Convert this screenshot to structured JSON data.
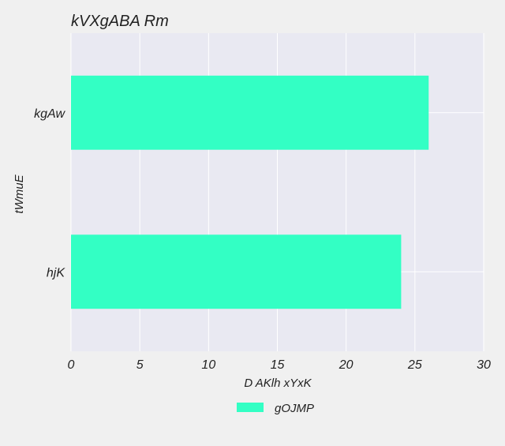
{
  "chart_data": {
    "type": "bar",
    "orientation": "horizontal",
    "title": "kVXgABA Rm",
    "xlabel": "D AKlh xYxK",
    "ylabel": "tWmuE",
    "categories": [
      "kgAw",
      "hjK"
    ],
    "series": [
      {
        "name": "gOJMP",
        "values": [
          26,
          24
        ],
        "color": "#33ffc4"
      }
    ],
    "xlim": [
      0,
      30
    ],
    "xticks": [
      0,
      5,
      10,
      15,
      20,
      25,
      30
    ],
    "grid": true,
    "legend_position": "bottom-center",
    "colors": {
      "figure_background": "#f0f0f0",
      "plot_background": "#e9e9f2",
      "grid": "#ffffff"
    }
  }
}
